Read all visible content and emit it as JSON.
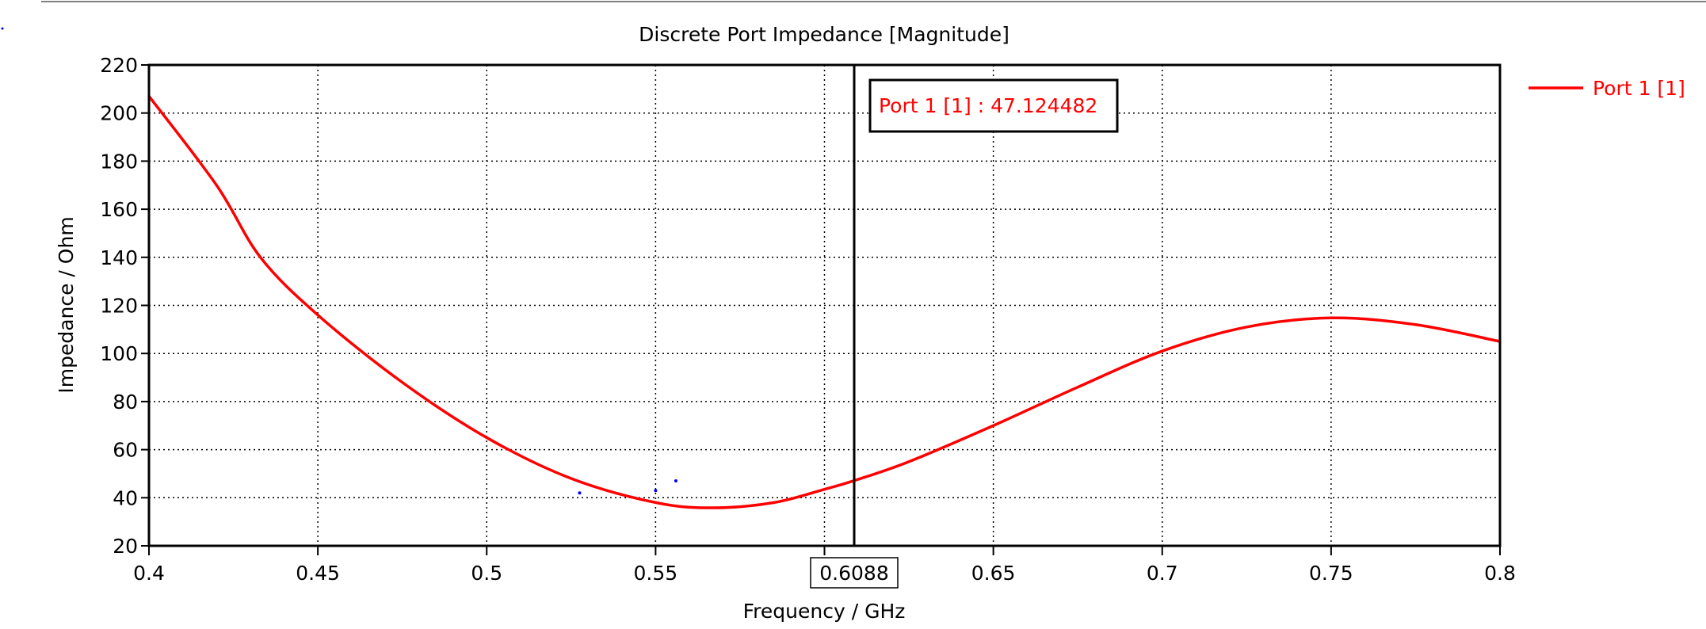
{
  "chart_data": {
    "type": "line",
    "title": "Discrete Port Impedance [Magnitude]",
    "xlabel": "Frequency / GHz",
    "ylabel": "Impedance / Ohm",
    "xlim": [
      0.4,
      0.8
    ],
    "ylim": [
      20,
      220
    ],
    "xticks": [
      0.4,
      0.45,
      0.5,
      0.55,
      0.65,
      0.7,
      0.75,
      0.8
    ],
    "xtick_labels": [
      "0.4",
      "0.45",
      "0.5",
      "0.55",
      "0.65",
      "0.7",
      "0.75",
      "0.8"
    ],
    "xgrid": [
      0.4,
      0.45,
      0.5,
      0.55,
      0.6,
      0.65,
      0.7,
      0.75,
      0.8
    ],
    "yticks": [
      20,
      40,
      60,
      80,
      100,
      120,
      140,
      160,
      180,
      200,
      220
    ],
    "ytick_labels": [
      "20",
      "40",
      "60",
      "80",
      "100",
      "120",
      "140",
      "160",
      "180",
      "200",
      "220"
    ],
    "grid": true,
    "legend_placement": "top-right-outside",
    "series": [
      {
        "name": "Port 1 [1]",
        "color": "#ff0000",
        "x": [
          0.4,
          0.42,
          0.433,
          0.45,
          0.475,
          0.5,
          0.525,
          0.55,
          0.567,
          0.585,
          0.6,
          0.6088,
          0.625,
          0.65,
          0.675,
          0.7,
          0.725,
          0.75,
          0.775,
          0.8
        ],
        "y": [
          207,
          170,
          140,
          116,
          88,
          65,
          48,
          38,
          35.8,
          38,
          43.5,
          47.12,
          55,
          70,
          86,
          101,
          111,
          114.8,
          112,
          105
        ]
      }
    ],
    "marker": {
      "x": 0.6088,
      "x_label": "0.6088",
      "label": "Port 1 [1] : 47.124482"
    },
    "stray_points": [
      [
        0.5275,
        42
      ],
      [
        0.55,
        43
      ],
      [
        0.556,
        47
      ]
    ]
  }
}
